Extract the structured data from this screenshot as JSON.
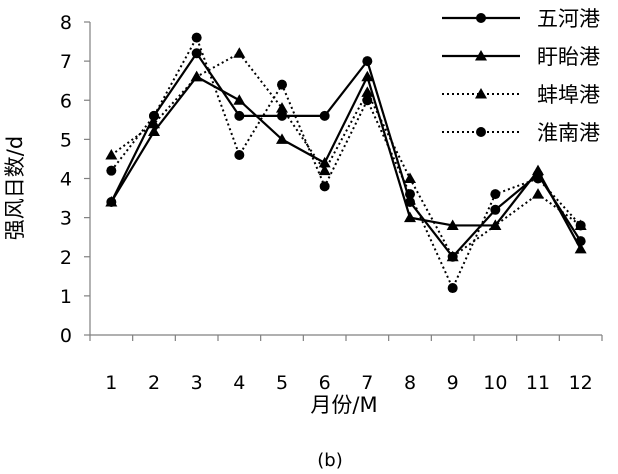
{
  "chart_data": {
    "type": "line",
    "caption": "(b)",
    "xlabel": "月份/M",
    "ylabel": "强风日数/d",
    "ylim": [
      0,
      8
    ],
    "y_ticks": [
      "0",
      "1",
      "2",
      "3",
      "4",
      "5",
      "6",
      "7",
      "8"
    ],
    "categories": [
      "1",
      "2",
      "3",
      "4",
      "5",
      "6",
      "7",
      "8",
      "9",
      "10",
      "11",
      "12"
    ],
    "grid": false,
    "legend_position": "top-right",
    "series": [
      {
        "name": "五河港",
        "line": "solid",
        "marker": "circle",
        "values": [
          3.4,
          5.6,
          7.2,
          5.6,
          5.6,
          5.6,
          7.0,
          3.4,
          2.0,
          3.2,
          4.1,
          2.4
        ]
      },
      {
        "name": "盱眙港",
        "line": "solid",
        "marker": "triangle",
        "values": [
          3.4,
          5.2,
          6.6,
          6.0,
          5.0,
          4.4,
          6.6,
          3.0,
          2.8,
          2.8,
          4.2,
          2.2
        ]
      },
      {
        "name": "蚌埠港",
        "line": "dotted",
        "marker": "triangle",
        "values": [
          4.6,
          5.4,
          6.6,
          7.2,
          5.8,
          4.2,
          6.2,
          4.0,
          2.0,
          2.8,
          3.6,
          2.8
        ]
      },
      {
        "name": "淮南港",
        "line": "dotted",
        "marker": "circle",
        "values": [
          4.2,
          5.6,
          7.6,
          4.6,
          6.4,
          3.8,
          6.0,
          3.6,
          1.2,
          3.6,
          4.0,
          2.8
        ]
      }
    ]
  }
}
